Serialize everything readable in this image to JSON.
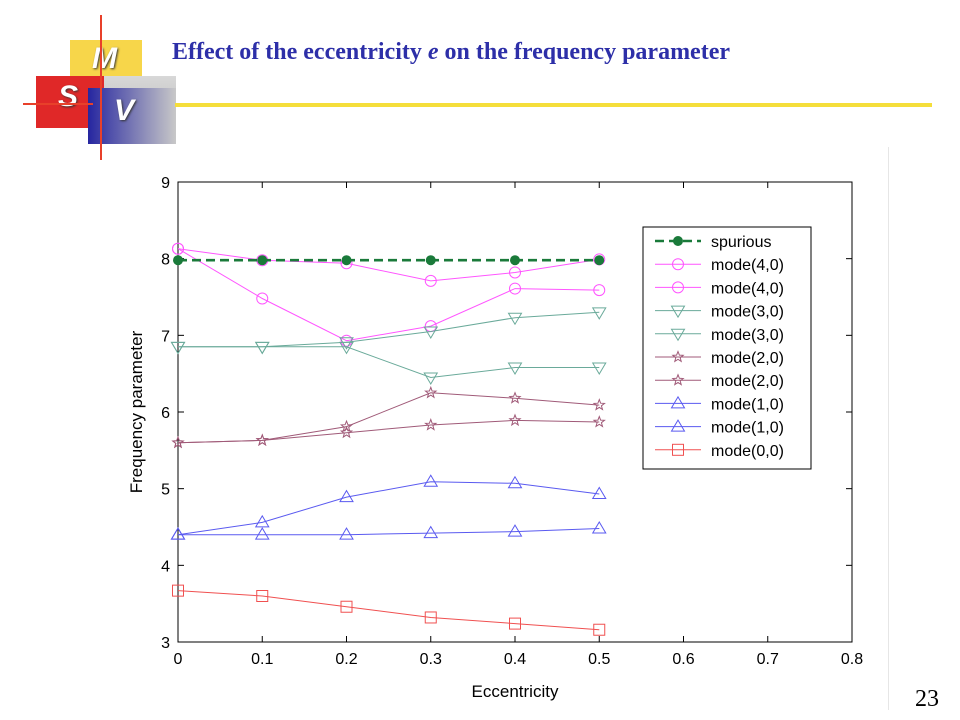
{
  "slide": {
    "title_prefix": "Effect of the eccentricity ",
    "title_italic": "e",
    "title_suffix": " on the frequency parameter",
    "page_number": "23",
    "logo_letters": [
      "M",
      "S",
      "V"
    ]
  },
  "chart_data": {
    "type": "line",
    "xlabel": "Eccentricity",
    "ylabel": "Frequency parameter",
    "xlim": [
      0,
      0.8
    ],
    "ylim": [
      3,
      9
    ],
    "xticks": [
      "0",
      "0.1",
      "0.2",
      "0.3",
      "0.4",
      "0.5",
      "0.6",
      "0.7",
      "0.8"
    ],
    "yticks": [
      "3",
      "4",
      "5",
      "6",
      "7",
      "8",
      "9"
    ],
    "x": [
      0,
      0.1,
      0.2,
      0.3,
      0.4,
      0.5
    ],
    "legend_position": "top-right",
    "series": [
      {
        "name": "spurious",
        "color": "#1a7a3a",
        "marker": "dot",
        "dashed": true,
        "values": [
          7.98,
          7.98,
          7.98,
          7.98,
          7.98,
          7.98
        ]
      },
      {
        "name": "mode(4,0)",
        "color": "#ff55ff",
        "marker": "circle",
        "dashed": false,
        "values": [
          8.13,
          7.98,
          7.94,
          7.71,
          7.82,
          7.99
        ]
      },
      {
        "name": "mode(4,0)",
        "color": "#ff55ff",
        "marker": "circle",
        "dashed": false,
        "values": [
          8.13,
          7.48,
          6.93,
          7.12,
          7.61,
          7.59
        ]
      },
      {
        "name": "mode(3,0)",
        "color": "#6aaa9a",
        "marker": "triangle-down",
        "dashed": false,
        "values": [
          6.85,
          6.85,
          6.91,
          7.05,
          7.23,
          7.3
        ]
      },
      {
        "name": "mode(3,0)",
        "color": "#6aaa9a",
        "marker": "triangle-down",
        "dashed": false,
        "values": [
          6.85,
          6.85,
          6.85,
          6.45,
          6.58,
          6.58
        ]
      },
      {
        "name": "mode(2,0)",
        "color": "#a05a78",
        "marker": "star",
        "dashed": false,
        "values": [
          5.6,
          5.63,
          5.81,
          6.25,
          6.18,
          6.09
        ]
      },
      {
        "name": "mode(2,0)",
        "color": "#a05a78",
        "marker": "star",
        "dashed": false,
        "values": [
          5.6,
          5.63,
          5.73,
          5.83,
          5.89,
          5.87
        ]
      },
      {
        "name": "mode(1,0)",
        "color": "#5a5af0",
        "marker": "triangle-up",
        "dashed": false,
        "values": [
          4.4,
          4.56,
          4.89,
          5.09,
          5.07,
          4.93
        ]
      },
      {
        "name": "mode(1,0)",
        "color": "#5a5af0",
        "marker": "triangle-up",
        "dashed": false,
        "values": [
          4.4,
          4.4,
          4.4,
          4.42,
          4.44,
          4.48
        ]
      },
      {
        "name": "mode(0,0)",
        "color": "#f05050",
        "marker": "square",
        "dashed": false,
        "values": [
          3.67,
          3.6,
          3.46,
          3.32,
          3.24,
          3.16
        ]
      }
    ]
  }
}
